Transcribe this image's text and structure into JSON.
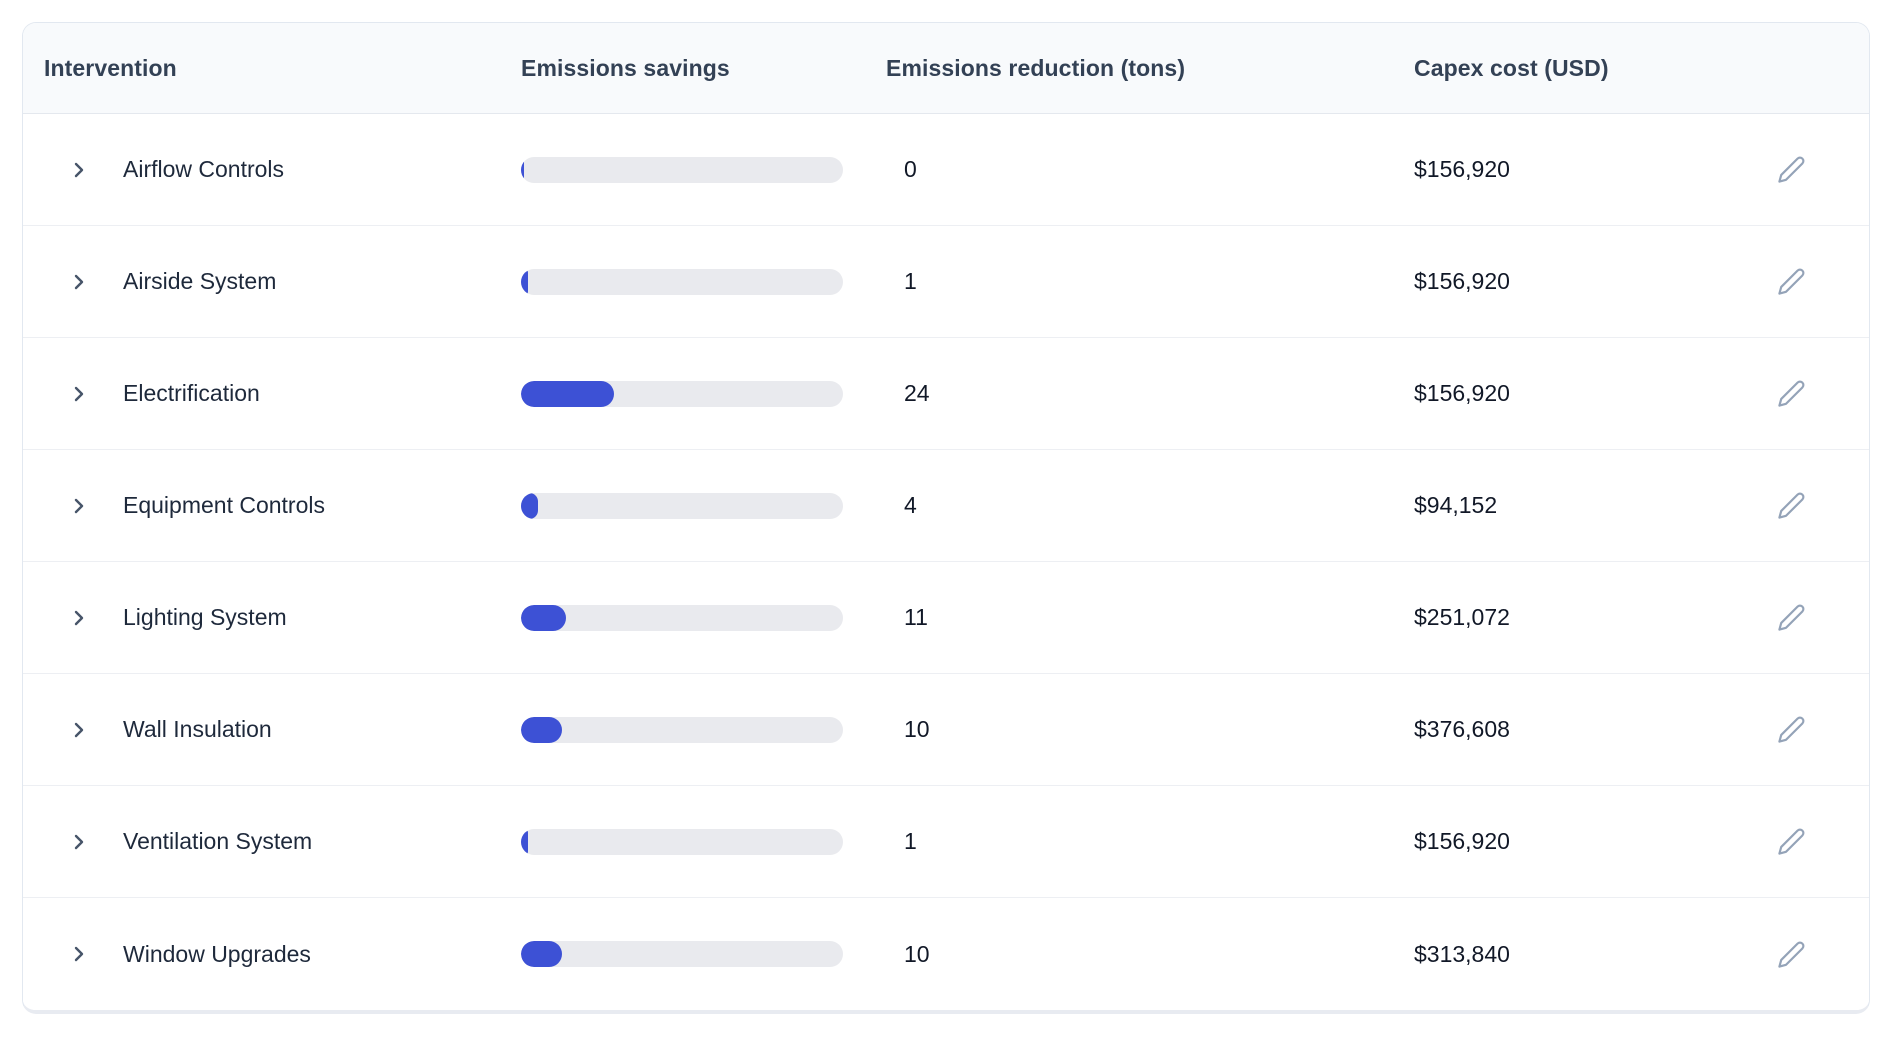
{
  "table": {
    "columns": [
      "Intervention",
      "Emissions savings",
      "Emissions reduction (tons)",
      "Capex cost (USD)"
    ],
    "rows": [
      {
        "name": "Airflow Controls",
        "savings_pct": 1,
        "reduction_tons": "0",
        "capex": "$156,920"
      },
      {
        "name": "Airside System",
        "savings_pct": 2.2,
        "reduction_tons": "1",
        "capex": "$156,920"
      },
      {
        "name": "Electrification",
        "savings_pct": 29,
        "reduction_tons": "24",
        "capex": "$156,920"
      },
      {
        "name": "Equipment Controls",
        "savings_pct": 5.3,
        "reduction_tons": "4",
        "capex": "$94,152"
      },
      {
        "name": "Lighting System",
        "savings_pct": 14,
        "reduction_tons": "11",
        "capex": "$251,072"
      },
      {
        "name": "Wall Insulation",
        "savings_pct": 12.7,
        "reduction_tons": "10",
        "capex": "$376,608"
      },
      {
        "name": "Ventilation System",
        "savings_pct": 2.2,
        "reduction_tons": "1",
        "capex": "$156,920"
      },
      {
        "name": "Window Upgrades",
        "savings_pct": 12.7,
        "reduction_tons": "10",
        "capex": "$313,840"
      }
    ]
  },
  "colors": {
    "bar_fill": "#3D51D5",
    "bar_track": "#E9EAEE",
    "header_bg": "#F8FAFC",
    "header_text": "#334155",
    "row_text": "#1E293B",
    "card_border": "#E2E8F0",
    "icon_chevron": "#475569",
    "icon_pencil": "#94A3B8"
  },
  "icons": {
    "row_expand": "chevron-right",
    "row_edit": "pencil"
  }
}
